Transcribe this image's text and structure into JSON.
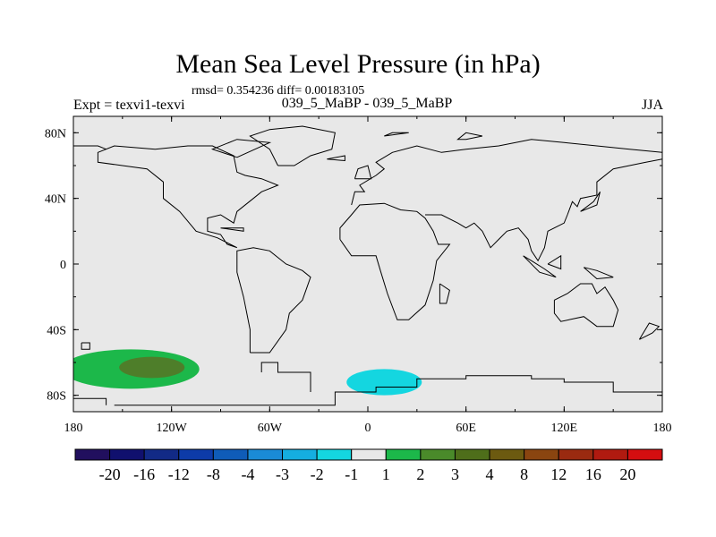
{
  "chart_data": {
    "type": "heatmap",
    "title": "Mean Sea Level Pressure (in hPa)",
    "stats_text": "rmsd= 0.354236  diff= 0.00183105",
    "left_string": "Expt = texvi1-texvi",
    "center_string": "039_5_MaBP - 039_5_MaBP",
    "right_string": "JJA",
    "x_ticks": [
      "180",
      "120W",
      "60W",
      "0",
      "60E",
      "120E",
      "180"
    ],
    "y_ticks": [
      "80N",
      "40N",
      "0",
      "40S",
      "80S"
    ],
    "lon_range": [
      -180,
      180
    ],
    "lat_range": [
      -90,
      90
    ],
    "colorbar": {
      "colors": [
        "#210f5e",
        "#10106e",
        "#122a86",
        "#0d3ba8",
        "#0f5cb8",
        "#1a8bd6",
        "#15aee0",
        "#14d6e0",
        "#e8e8e8",
        "#1cb84a",
        "#4a8a2a",
        "#4e6e1a",
        "#6c5a10",
        "#8a4510",
        "#9a2a10",
        "#b01a10",
        "#d40e10"
      ],
      "labels": [
        "-20",
        "-16",
        "-12",
        "-8",
        "-4",
        "-3",
        "-2",
        "-1",
        "1",
        "2",
        "3",
        "4",
        "8",
        "12",
        "16",
        "20"
      ]
    },
    "anomalies": [
      {
        "name": "south-pacific-positive",
        "level": "1 to 2",
        "color": "#1cb84a",
        "lon_center": -145,
        "lat_center": -64,
        "lon_extent": 84,
        "lat_extent": 24
      },
      {
        "name": "south-pacific-core",
        "level": "2 to 3",
        "color": "#4e7e2a",
        "lon_center": -132,
        "lat_center": -63,
        "lon_extent": 40,
        "lat_extent": 13
      },
      {
        "name": "south-atlantic-negative",
        "level": "-2 to -1",
        "color": "#14d6e0",
        "lon_center": 10,
        "lat_center": -72,
        "lon_extent": 46,
        "lat_extent": 16
      }
    ],
    "coastlines": [
      [
        [
          -155,
          -86
        ],
        [
          -20,
          -86
        ],
        [
          -20,
          -78
        ],
        [
          5,
          -78
        ],
        [
          5,
          -75
        ],
        [
          30,
          -75
        ],
        [
          30,
          -70
        ],
        [
          60,
          -70
        ],
        [
          60,
          -68
        ],
        [
          100,
          -68
        ],
        [
          100,
          -70
        ],
        [
          120,
          -70
        ],
        [
          120,
          -72
        ],
        [
          150,
          -72
        ],
        [
          150,
          -78
        ],
        [
          180,
          -78
        ]
      ],
      [
        [
          -180,
          -82
        ],
        [
          -160,
          -82
        ],
        [
          -160,
          -86
        ]
      ],
      [
        [
          -65,
          -66
        ],
        [
          -65,
          -60
        ],
        [
          -55,
          -60
        ],
        [
          -55,
          -66
        ],
        [
          -35,
          -66
        ],
        [
          -35,
          -78
        ]
      ],
      [
        [
          -72,
          -54
        ],
        [
          -60,
          -54
        ],
        [
          -50,
          -40
        ],
        [
          -48,
          -30
        ],
        [
          -40,
          -22
        ],
        [
          -35,
          -8
        ],
        [
          -40,
          -4
        ],
        [
          -50,
          0
        ],
        [
          -60,
          8
        ],
        [
          -70,
          10
        ],
        [
          -80,
          8
        ],
        [
          -80,
          -5
        ],
        [
          -76,
          -20
        ],
        [
          -72,
          -40
        ],
        [
          -72,
          -54
        ]
      ],
      [
        [
          -80,
          10
        ],
        [
          -92,
          16
        ],
        [
          -105,
          20
        ],
        [
          -115,
          32
        ],
        [
          -125,
          40
        ],
        [
          -125,
          50
        ],
        [
          -135,
          58
        ],
        [
          -150,
          60
        ],
        [
          -165,
          62
        ],
        [
          -165,
          68
        ],
        [
          -155,
          72
        ],
        [
          -130,
          70
        ],
        [
          -110,
          72
        ],
        [
          -95,
          72
        ],
        [
          -82,
          66
        ],
        [
          -80,
          56
        ],
        [
          -75,
          54
        ],
        [
          -65,
          52
        ],
        [
          -55,
          48
        ],
        [
          -65,
          44
        ],
        [
          -70,
          40
        ],
        [
          -80,
          32
        ],
        [
          -82,
          25
        ],
        [
          -90,
          30
        ],
        [
          -98,
          28
        ],
        [
          -98,
          20
        ],
        [
          -90,
          18
        ],
        [
          -86,
          12
        ],
        [
          -80,
          10
        ]
      ],
      [
        [
          -55,
          60
        ],
        [
          -45,
          60
        ],
        [
          -35,
          66
        ],
        [
          -22,
          70
        ],
        [
          -20,
          80
        ],
        [
          -40,
          84
        ],
        [
          -60,
          82
        ],
        [
          -72,
          78
        ],
        [
          -60,
          70
        ],
        [
          -55,
          60
        ]
      ],
      [
        [
          -180,
          72
        ],
        [
          -165,
          72
        ],
        [
          -160,
          70
        ]
      ],
      [
        [
          -10,
          36
        ],
        [
          -8,
          44
        ],
        [
          -2,
          44
        ],
        [
          -5,
          48
        ],
        [
          5,
          54
        ],
        [
          10,
          58
        ],
        [
          5,
          62
        ],
        [
          15,
          68
        ],
        [
          30,
          72
        ],
        [
          45,
          68
        ],
        [
          60,
          70
        ],
        [
          80,
          72
        ],
        [
          100,
          76
        ],
        [
          120,
          74
        ],
        [
          140,
          72
        ],
        [
          160,
          70
        ],
        [
          180,
          68
        ]
      ],
      [
        [
          -17,
          15
        ],
        [
          -17,
          22
        ],
        [
          -10,
          30
        ],
        [
          -5,
          36
        ],
        [
          10,
          37
        ],
        [
          20,
          33
        ],
        [
          30,
          32
        ],
        [
          35,
          28
        ],
        [
          40,
          20
        ],
        [
          43,
          12
        ],
        [
          50,
          12
        ],
        [
          42,
          2
        ],
        [
          40,
          -10
        ],
        [
          35,
          -25
        ],
        [
          25,
          -34
        ],
        [
          18,
          -34
        ],
        [
          12,
          -18
        ],
        [
          8,
          -5
        ],
        [
          5,
          5
        ],
        [
          -5,
          5
        ],
        [
          -10,
          5
        ],
        [
          -17,
          15
        ]
      ],
      [
        [
          35,
          30
        ],
        [
          45,
          30
        ],
        [
          55,
          25
        ],
        [
          60,
          22
        ],
        [
          65,
          25
        ],
        [
          70,
          20
        ],
        [
          75,
          10
        ],
        [
          80,
          15
        ],
        [
          85,
          20
        ],
        [
          92,
          22
        ],
        [
          98,
          15
        ],
        [
          100,
          8
        ],
        [
          104,
          2
        ],
        [
          108,
          10
        ],
        [
          110,
          20
        ],
        [
          120,
          25
        ],
        [
          122,
          30
        ],
        [
          125,
          38
        ],
        [
          128,
          35
        ],
        [
          130,
          40
        ],
        [
          140,
          42
        ],
        [
          140,
          50
        ],
        [
          150,
          58
        ],
        [
          160,
          60
        ],
        [
          170,
          62
        ],
        [
          180,
          64
        ]
      ],
      [
        [
          44,
          -12
        ],
        [
          50,
          -16
        ],
        [
          48,
          -24
        ],
        [
          44,
          -24
        ],
        [
          44,
          -12
        ]
      ],
      [
        [
          114,
          -22
        ],
        [
          122,
          -18
        ],
        [
          130,
          -12
        ],
        [
          137,
          -12
        ],
        [
          140,
          -18
        ],
        [
          145,
          -14
        ],
        [
          150,
          -22
        ],
        [
          153,
          -28
        ],
        [
          150,
          -38
        ],
        [
          140,
          -38
        ],
        [
          132,
          -32
        ],
        [
          118,
          -35
        ],
        [
          114,
          -30
        ],
        [
          114,
          -22
        ]
      ],
      [
        [
          166,
          -46
        ],
        [
          174,
          -42
        ],
        [
          178,
          -38
        ],
        [
          172,
          -36
        ],
        [
          166,
          -46
        ]
      ],
      [
        [
          95,
          5
        ],
        [
          105,
          -5
        ],
        [
          115,
          -8
        ],
        [
          108,
          -3
        ],
        [
          100,
          2
        ],
        [
          95,
          5
        ]
      ],
      [
        [
          110,
          0
        ],
        [
          118,
          5
        ],
        [
          118,
          -3
        ],
        [
          110,
          0
        ]
      ],
      [
        [
          132,
          -2
        ],
        [
          140,
          -4
        ],
        [
          150,
          -8
        ],
        [
          140,
          -9
        ],
        [
          132,
          -2
        ]
      ],
      [
        [
          -8,
          52
        ],
        [
          -6,
          58
        ],
        [
          0,
          60
        ],
        [
          2,
          52
        ],
        [
          -8,
          52
        ]
      ],
      [
        [
          130,
          32
        ],
        [
          140,
          36
        ],
        [
          142,
          44
        ],
        [
          138,
          38
        ],
        [
          130,
          32
        ]
      ],
      [
        [
          -25,
          64
        ],
        [
          -14,
          66
        ],
        [
          -14,
          63
        ],
        [
          -25,
          64
        ]
      ],
      [
        [
          -80,
          65
        ],
        [
          -60,
          74
        ],
        [
          -80,
          76
        ],
        [
          -95,
          70
        ],
        [
          -80,
          65
        ]
      ],
      [
        [
          60,
          76
        ],
        [
          70,
          78
        ],
        [
          60,
          80
        ],
        [
          55,
          76
        ],
        [
          60,
          76
        ]
      ],
      [
        [
          10,
          78
        ],
        [
          25,
          80
        ],
        [
          15,
          80
        ],
        [
          10,
          78
        ]
      ],
      [
        [
          -90,
          22
        ],
        [
          -76,
          22
        ],
        [
          -76,
          20
        ],
        [
          -90,
          22
        ]
      ],
      [
        [
          -175,
          -48
        ],
        [
          -170,
          -48
        ],
        [
          -170,
          -52
        ],
        [
          -175,
          -52
        ],
        [
          -175,
          -48
        ]
      ]
    ]
  }
}
